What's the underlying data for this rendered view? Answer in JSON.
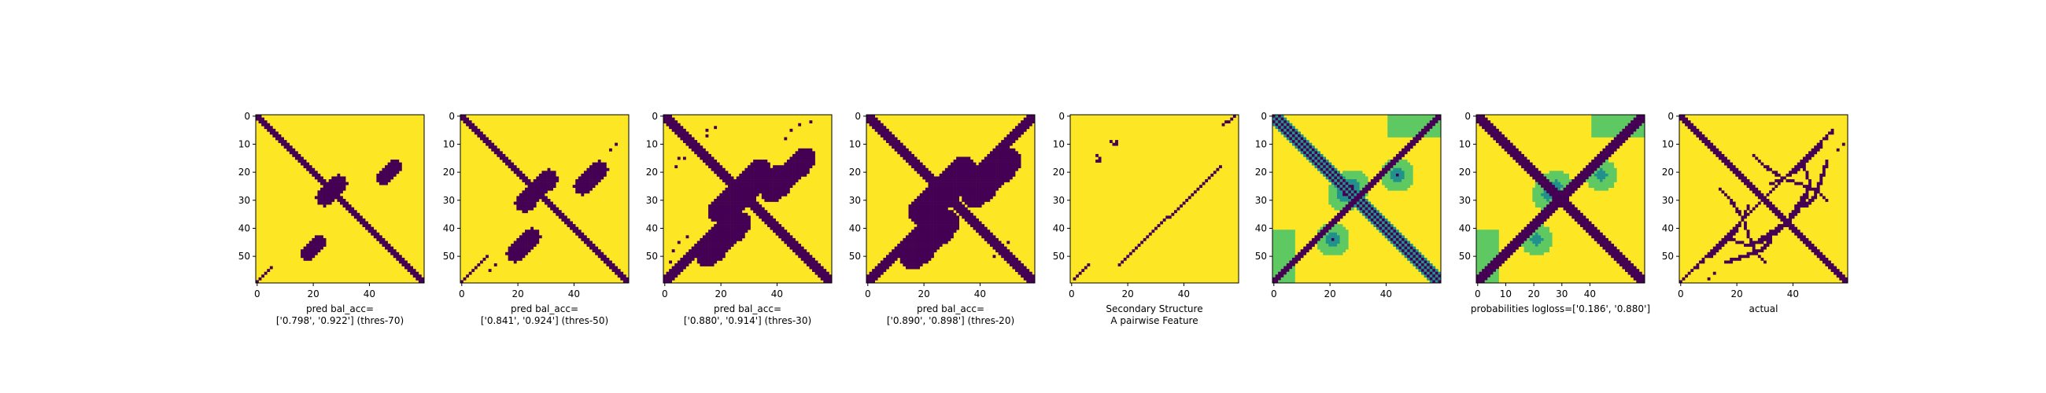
{
  "colors": {
    "high": "#fde725",
    "low": "#440154",
    "mid": "#21918c",
    "midlight": "#5ec962",
    "axis": "#000000"
  },
  "chart_data": [
    {
      "type": "heatmap",
      "name": "pred-thres-70",
      "grid": 60,
      "xlim": [
        0,
        59
      ],
      "ylim": [
        59,
        0
      ],
      "xticks": [
        0,
        20,
        40
      ],
      "yticks": [
        0,
        10,
        20,
        30,
        40,
        50
      ],
      "title_lines": [
        "pred bal_acc=",
        "['0.798', '0.922'] (thres-70)"
      ],
      "diagonal": {
        "offsets": [
          -1,
          0,
          1
        ]
      },
      "anti_diagonal": {
        "from": 54,
        "to": 59,
        "width": 1
      },
      "blobs": [
        {
          "center": [
            27,
            26
          ],
          "width": 4,
          "length": 7
        },
        {
          "center": [
            47,
            20
          ],
          "width": 3,
          "length": 7
        }
      ],
      "scatter": []
    },
    {
      "type": "heatmap",
      "name": "pred-thres-50",
      "grid": 60,
      "xlim": [
        0,
        59
      ],
      "ylim": [
        59,
        0
      ],
      "xticks": [
        0,
        20,
        40
      ],
      "yticks": [
        0,
        10,
        20,
        30,
        40,
        50
      ],
      "title_lines": [
        "pred bal_acc=",
        "['0.841', '0.924'] (thres-50)"
      ],
      "diagonal": {
        "offsets": [
          -1,
          0,
          1
        ]
      },
      "anti_diagonal": {
        "from": 50,
        "to": 59,
        "width": 1
      },
      "blobs": [
        {
          "center": [
            27,
            26
          ],
          "width": 4,
          "length": 11
        },
        {
          "center": [
            46,
            22
          ],
          "width": 4,
          "length": 9
        }
      ],
      "scatter": [
        [
          10,
          55
        ],
        [
          12,
          53
        ]
      ]
    },
    {
      "type": "heatmap",
      "name": "pred-thres-30",
      "grid": 60,
      "xlim": [
        0,
        59
      ],
      "ylim": [
        59,
        0
      ],
      "xticks": [
        0,
        20,
        40
      ],
      "yticks": [
        0,
        10,
        20,
        30,
        40,
        50
      ],
      "title_lines": [
        "pred bal_acc=",
        "['0.880', '0.914'] (thres-30)"
      ],
      "diagonal": {
        "offsets": [
          -2,
          -1,
          0,
          1,
          2
        ]
      },
      "anti_diagonal": {
        "from": 18,
        "to": 59,
        "width": 3
      },
      "blobs": [
        {
          "center": [
            28,
            25
          ],
          "width": 5,
          "length": 16
        },
        {
          "center": [
            44,
            21
          ],
          "width": 5,
          "length": 16
        }
      ],
      "scatter": [
        [
          5,
          15
        ],
        [
          7,
          15
        ],
        [
          4,
          18
        ],
        [
          5,
          45
        ],
        [
          8,
          43
        ],
        [
          48,
          3
        ],
        [
          52,
          2
        ]
      ]
    },
    {
      "type": "heatmap",
      "name": "pred-thres-20",
      "grid": 60,
      "xlim": [
        0,
        59
      ],
      "ylim": [
        59,
        0
      ],
      "xticks": [
        0,
        20,
        40
      ],
      "yticks": [
        0,
        10,
        20,
        30,
        40,
        50
      ],
      "title_lines": [
        "pred bal_acc=",
        "['0.890', '0.898'] (thres-20)"
      ],
      "diagonal": {
        "offsets": [
          -2,
          -1,
          0,
          1,
          2
        ]
      },
      "anti_diagonal": {
        "from": 0,
        "to": 59,
        "width": 3
      },
      "blobs": [
        {
          "center": [
            28,
            25
          ],
          "width": 6,
          "length": 18
        },
        {
          "center": [
            44,
            22
          ],
          "width": 6,
          "length": 18
        }
      ],
      "scatter": [
        [
          10,
          12
        ],
        [
          12,
          14
        ],
        [
          50,
          45
        ],
        [
          48,
          47
        ]
      ]
    },
    {
      "type": "heatmap",
      "name": "secondary-structure",
      "grid": 60,
      "xlim": [
        0,
        59
      ],
      "ylim": [
        59,
        0
      ],
      "xticks": [
        0,
        20,
        40
      ],
      "yticks": [
        0,
        10,
        20,
        30,
        40,
        50
      ],
      "title_lines": [
        "Secondary Structure",
        "A pairwise Feature"
      ],
      "diagonal": null,
      "anti_diagonal": null,
      "blobs": [],
      "lines": [
        {
          "from": [
            17,
            53
          ],
          "to": [
            53,
            18
          ]
        },
        {
          "from": [
            1,
            58
          ],
          "to": [
            6,
            53
          ]
        },
        {
          "from": [
            54,
            3
          ],
          "to": [
            58,
            0
          ]
        }
      ],
      "scatter": [
        [
          14,
          9
        ],
        [
          16,
          10
        ],
        [
          9,
          16
        ],
        [
          10,
          15
        ]
      ]
    },
    {
      "type": "heatmap",
      "name": "probabilities-continuous",
      "grid": 60,
      "xlim": [
        0,
        59
      ],
      "ylim": [
        59,
        0
      ],
      "xticks": [
        0,
        20,
        40
      ],
      "yticks": [
        0,
        10,
        20,
        30,
        40,
        50
      ],
      "title_lines": [
        "",
        ""
      ],
      "continuous": true
    },
    {
      "type": "heatmap",
      "name": "probabilities",
      "grid": 60,
      "xlim": [
        0,
        59
      ],
      "ylim": [
        59,
        0
      ],
      "xticks": [
        0,
        10,
        20,
        30,
        40
      ],
      "yticks": [
        0,
        10,
        20,
        30,
        40,
        50
      ],
      "title_lines": [
        "probabilities logloss=['0.186', '0.880']",
        ""
      ],
      "continuous_dark": true
    },
    {
      "type": "heatmap",
      "name": "actual",
      "grid": 60,
      "xlim": [
        0,
        59
      ],
      "ylim": [
        59,
        0
      ],
      "xticks": [
        0,
        20,
        40
      ],
      "yticks": [
        0,
        10,
        20,
        30,
        40,
        50
      ],
      "title_lines": [
        "actual",
        ""
      ],
      "diagonal": {
        "offsets": [
          -1,
          0,
          1
        ]
      },
      "anti_diagonal": {
        "from": 5,
        "to": 59,
        "width": 1
      },
      "blobs": [],
      "curves": [
        [
          [
            26,
            14
          ],
          [
            30,
            18
          ],
          [
            36,
            22
          ],
          [
            42,
            24
          ],
          [
            48,
            26
          ],
          [
            52,
            30
          ]
        ],
        [
          [
            10,
            50
          ],
          [
            16,
            44
          ],
          [
            20,
            40
          ],
          [
            22,
            36
          ],
          [
            24,
            32
          ]
        ],
        [
          [
            44,
            18
          ],
          [
            46,
            24
          ],
          [
            44,
            30
          ],
          [
            40,
            36
          ],
          [
            34,
            40
          ],
          [
            28,
            44
          ]
        ],
        [
          [
            16,
            52
          ],
          [
            22,
            50
          ],
          [
            28,
            48
          ],
          [
            32,
            44
          ]
        ]
      ],
      "scatter": [
        [
          52,
          8
        ],
        [
          54,
          6
        ],
        [
          10,
          58
        ],
        [
          12,
          56
        ]
      ]
    }
  ]
}
